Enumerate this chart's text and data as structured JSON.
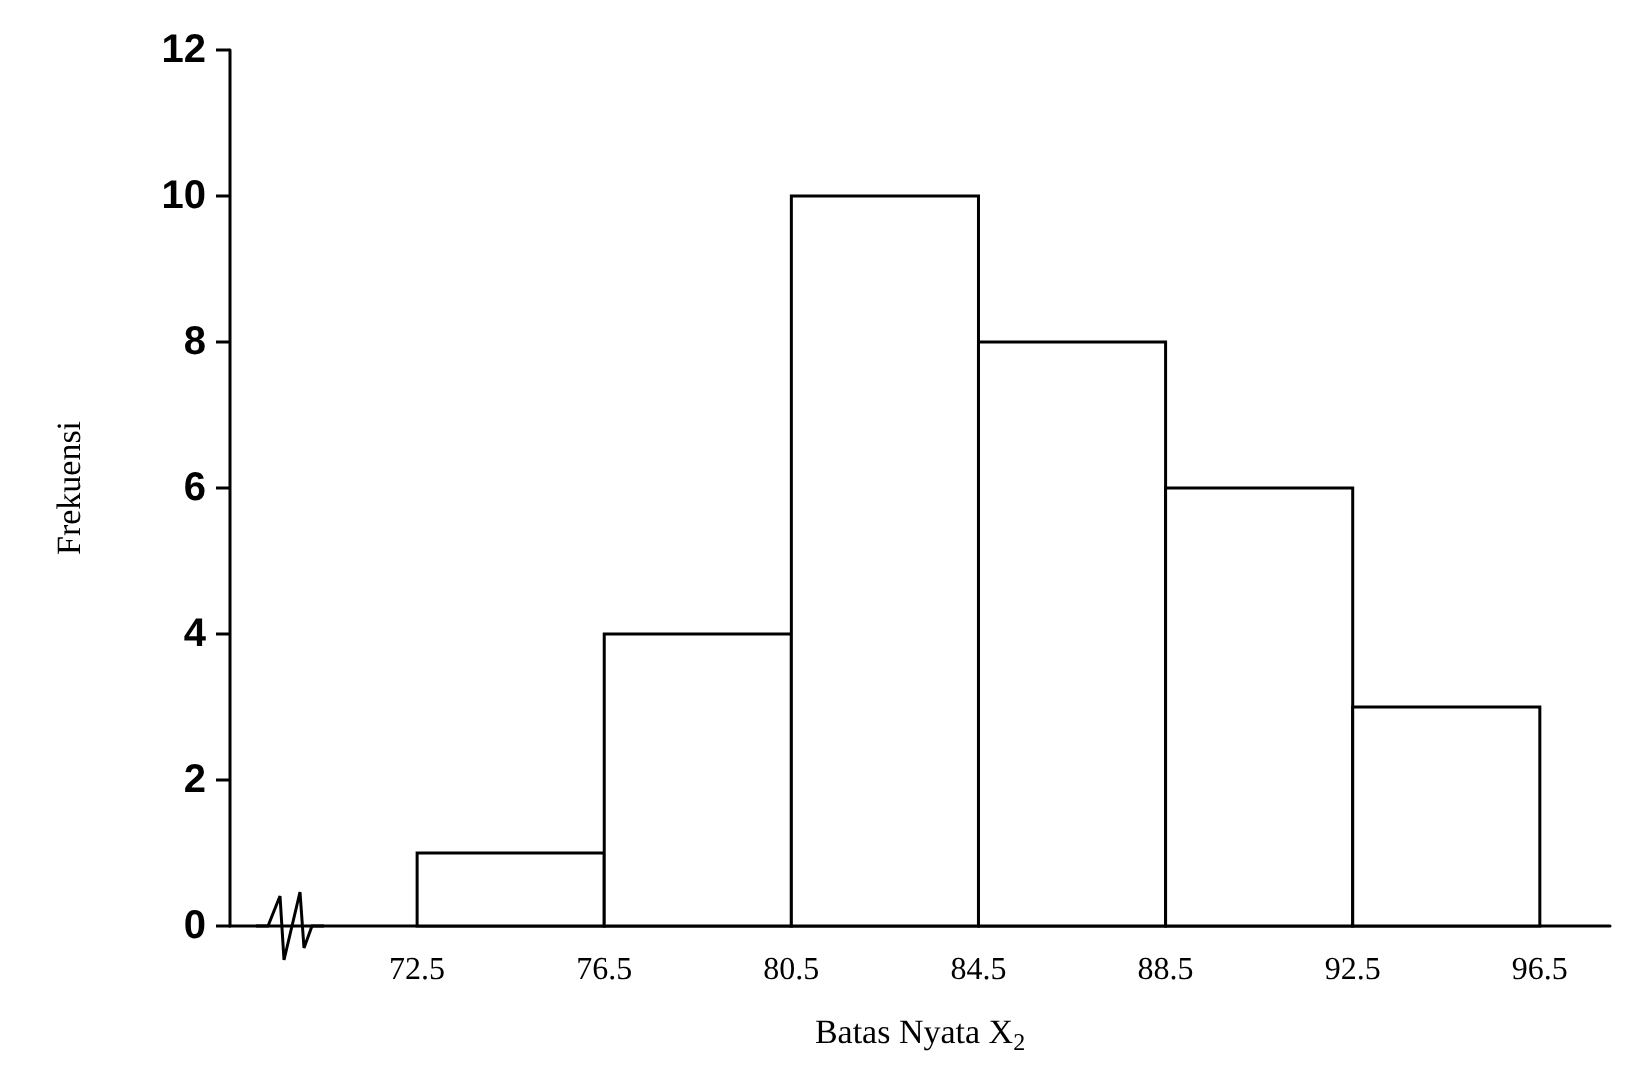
{
  "chart_data": {
    "type": "histogram",
    "xlabel": "Batas Nyata X$_{2}$",
    "ylabel": "Frekuensi",
    "bins": [
      72.5,
      76.5,
      80.5,
      84.5,
      88.5,
      92.5,
      96.5
    ],
    "values": [
      1,
      4,
      10,
      8,
      6,
      3
    ],
    "color": "#ffffff",
    "xlim": [
      68.5,
      98
    ],
    "xticks": [
      72.5,
      76.5,
      80.5,
      84.5,
      88.5,
      92.5,
      96.5
    ],
    "ylim": [
      0,
      12
    ],
    "yticks": [
      0,
      2,
      4,
      6,
      8,
      10,
      12
    ],
    "grid": false
  }
}
